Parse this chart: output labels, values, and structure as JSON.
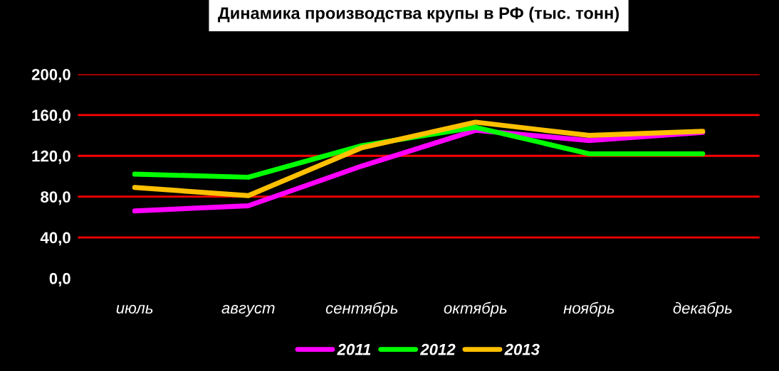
{
  "chart_data": {
    "type": "line",
    "title": "Динамика производства крупы в РФ (тыс. тонн)",
    "categories": [
      "июль",
      "август",
      "сентябрь",
      "октябрь",
      "ноябрь",
      "декабрь"
    ],
    "series": [
      {
        "name": "2011",
        "color": "#ff00ff",
        "values": [
          66,
          71,
          110,
          145,
          135,
          143
        ]
      },
      {
        "name": "2012",
        "color": "#00ff00",
        "values": [
          102,
          99,
          130,
          148,
          122,
          122
        ]
      },
      {
        "name": "2013",
        "color": "#ffc000",
        "values": [
          89,
          81,
          128,
          153,
          140,
          144
        ]
      }
    ],
    "ylim": [
      0,
      200
    ],
    "yticks": [
      {
        "value": 0,
        "label": "0,0"
      },
      {
        "value": 40,
        "label": "40,0"
      },
      {
        "value": 80,
        "label": "80,0"
      },
      {
        "value": 120,
        "label": "120,0"
      },
      {
        "value": 160,
        "label": "160,0"
      },
      {
        "value": 200,
        "label": "200,0"
      }
    ],
    "grid": "y",
    "legend": "bottom",
    "marker": "none",
    "line_style": "solid"
  }
}
